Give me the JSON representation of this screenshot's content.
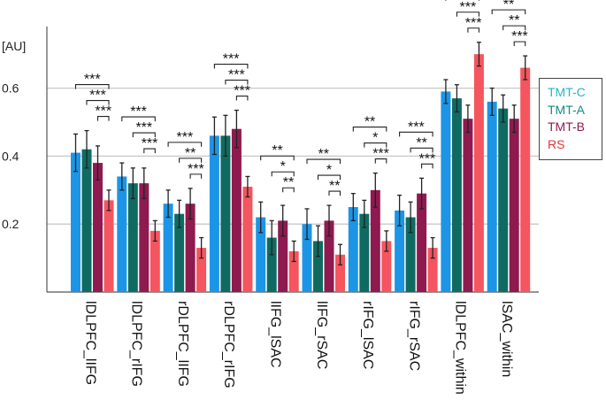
{
  "chart_data": {
    "type": "bar",
    "ylabel": "[AU]",
    "ylim": [
      0,
      0.85
    ],
    "yticks": [
      "0.2",
      "0.4",
      "0.6"
    ],
    "ytick_values": [
      0.2,
      0.4,
      0.6
    ],
    "grid": true,
    "legend_position": "right",
    "categories": [
      "lDLPFC_lIFG",
      "lDLPFC_rIFG",
      "rDLPFC_lIFG",
      "rDLPFC_rIFG",
      "lIFG_lSAC",
      "lIFG_rSAC",
      "rIFG_lSAC",
      "rIFG_rSAC",
      "lDLPFC_within",
      "lSAC_within"
    ],
    "series": [
      {
        "name": "TMT-C",
        "color": "#1c95e6",
        "values": [
          0.41,
          0.34,
          0.26,
          0.46,
          0.22,
          0.2,
          0.25,
          0.24,
          0.59,
          0.56
        ],
        "errors": [
          0.055,
          0.04,
          0.04,
          0.055,
          0.045,
          0.045,
          0.04,
          0.045,
          0.035,
          0.04
        ]
      },
      {
        "name": "TMT-A",
        "color": "#0f6b62",
        "values": [
          0.42,
          0.32,
          0.23,
          0.46,
          0.16,
          0.15,
          0.23,
          0.22,
          0.57,
          0.54
        ],
        "errors": [
          0.055,
          0.045,
          0.04,
          0.06,
          0.05,
          0.045,
          0.04,
          0.045,
          0.04,
          0.04
        ]
      },
      {
        "name": "TMT-B",
        "color": "#8e1a4f",
        "values": [
          0.38,
          0.32,
          0.26,
          0.48,
          0.21,
          0.21,
          0.3,
          0.29,
          0.51,
          0.51
        ],
        "errors": [
          0.05,
          0.045,
          0.045,
          0.055,
          0.045,
          0.045,
          0.05,
          0.045,
          0.04,
          0.04
        ]
      },
      {
        "name": "RS",
        "color": "#f4555e",
        "values": [
          0.27,
          0.18,
          0.13,
          0.31,
          0.12,
          0.11,
          0.15,
          0.13,
          0.7,
          0.66
        ],
        "errors": [
          0.03,
          0.03,
          0.03,
          0.03,
          0.03,
          0.03,
          0.03,
          0.03,
          0.035,
          0.035
        ]
      }
    ],
    "annotations": [
      {
        "category": 0,
        "labels": [
          "***",
          "***",
          "***"
        ]
      },
      {
        "category": 1,
        "labels": [
          "***",
          "***",
          "***"
        ]
      },
      {
        "category": 2,
        "labels": [
          "***",
          "**",
          "***"
        ]
      },
      {
        "category": 3,
        "labels": [
          "***",
          "***",
          "***"
        ]
      },
      {
        "category": 4,
        "labels": [
          "**",
          "*",
          "**"
        ]
      },
      {
        "category": 5,
        "labels": [
          "**",
          "*",
          "**"
        ]
      },
      {
        "category": 6,
        "labels": [
          "**",
          "*",
          "***"
        ]
      },
      {
        "category": 7,
        "labels": [
          "***",
          "**",
          "***"
        ]
      },
      {
        "category": 8,
        "labels": [
          "**",
          "***",
          "***"
        ]
      },
      {
        "category": 9,
        "labels": [
          "**",
          "**",
          "***"
        ]
      }
    ]
  },
  "legend": {
    "items": [
      {
        "label": "TMT-C",
        "color": "#22b5c9"
      },
      {
        "label": "TMT-A",
        "color": "#138a7d"
      },
      {
        "label": "TMT-B",
        "color": "#8e1a4f"
      },
      {
        "label": "RS",
        "color": "#e0363f"
      }
    ]
  }
}
